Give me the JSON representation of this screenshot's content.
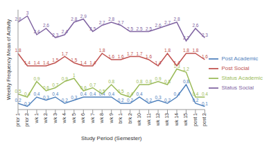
{
  "chart_data": {
    "type": "line",
    "x_label": "Study Period (Semester)",
    "y_label": "Weekly Frequency Mean of Activity",
    "categories": [
      "prior 1",
      "prior 2",
      "wk 1",
      "wk 2",
      "wk 3",
      "wk 4",
      "wk 5",
      "wk 6",
      "wk 7",
      "wk 8",
      "wk 9",
      "brk 1",
      "brk 2",
      "wk 10",
      "wk 11",
      "wk 12",
      "wk 13",
      "wk 14",
      "wk 15",
      "post 1",
      "post 2"
    ],
    "series": [
      {
        "name": "Post Academic",
        "color": "#4f81bd",
        "values": [
          0.2,
          0.1,
          0.4,
          0.3,
          0.4,
          0.2,
          0.3,
          0.4,
          0.4,
          0.4,
          0.4,
          0.2,
          0.2,
          0.4,
          0.2,
          0.3,
          0.2,
          0.4,
          0.8,
          0.2,
          0.1
        ]
      },
      {
        "name": "Post Social",
        "color": "#c0504d",
        "values": [
          1.8,
          1.4,
          1.4,
          1.4,
          1.5,
          1.7,
          1.5,
          1.4,
          1.4,
          1.8,
          1.6,
          1.6,
          1.7,
          1.7,
          1.6,
          1.4,
          1.8,
          1.4,
          1.8,
          1.8,
          1.6
        ]
      },
      {
        "name": "Status Academic",
        "color": "#9bbb59",
        "values": [
          0.5,
          0.4,
          0.9,
          0.6,
          0.7,
          0.9,
          1.0,
          0.6,
          0.7,
          0.5,
          0.8,
          0.5,
          0.4,
          0.8,
          0.8,
          0.9,
          0.8,
          1.3,
          1.2,
          0.4,
          0.4
        ]
      },
      {
        "name": "Status Social",
        "color": "#8064a2",
        "values": [
          2.8,
          3.0,
          2.4,
          2.6,
          2.3,
          2.4,
          2.8,
          2.9,
          2.5,
          2.7,
          2.8,
          2.7,
          2.5,
          2.5,
          2.5,
          2.6,
          2.7,
          2.8,
          2.2,
          2.6,
          2.3
        ]
      }
    ],
    "ylim": [
      0,
      3.2
    ],
    "tick_labels": "x",
    "data_labels": true,
    "legend": "right"
  }
}
